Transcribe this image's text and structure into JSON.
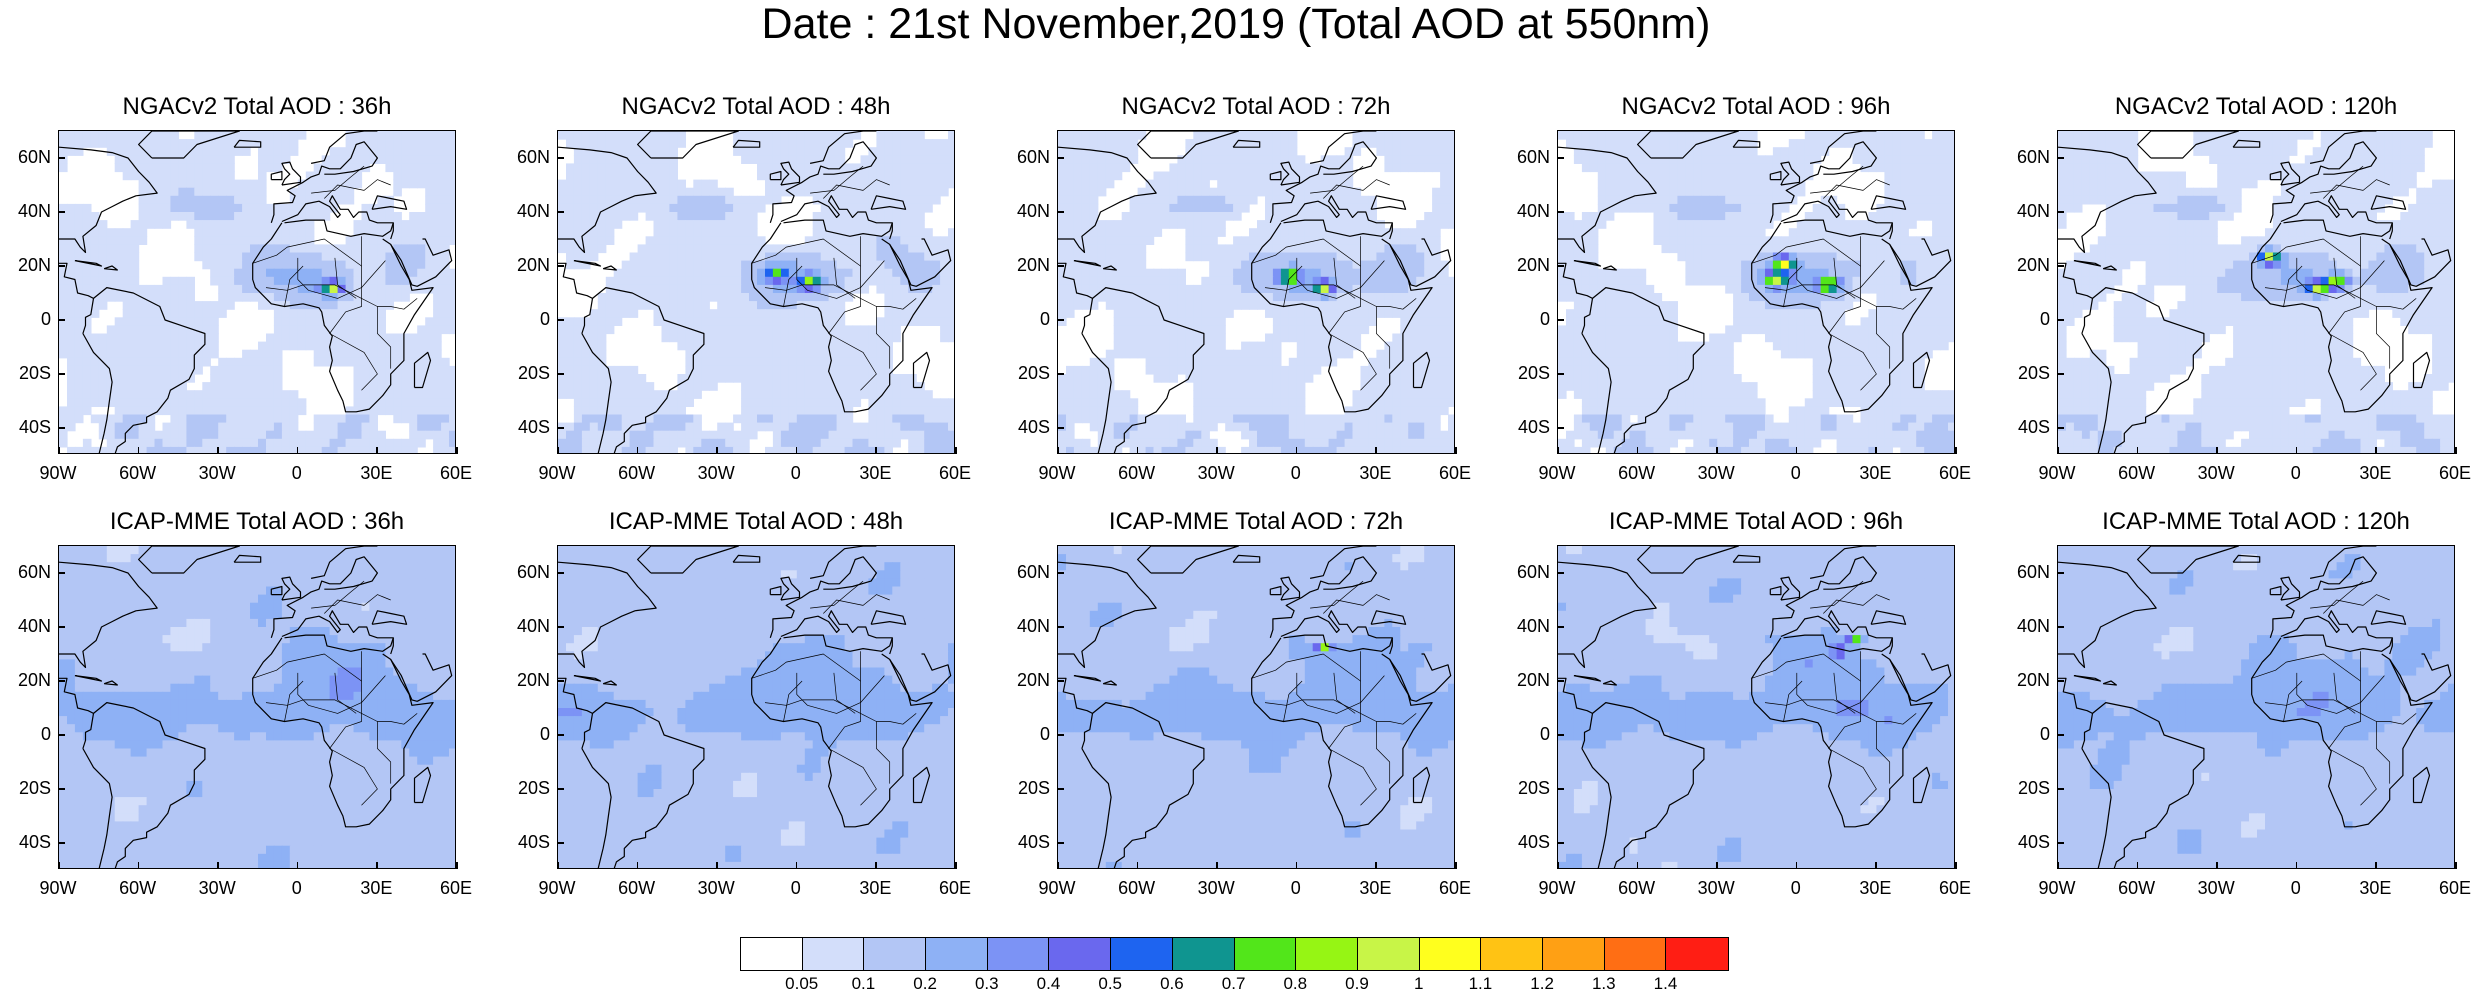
{
  "title": "Date : 21st November,2019 (Total AOD at 550nm)",
  "map_ticks": {
    "x": [
      "90W",
      "60W",
      "30W",
      "0",
      "30E",
      "60E"
    ],
    "y": [
      "60N",
      "40N",
      "20N",
      "0",
      "20S",
      "40S"
    ]
  },
  "colorbar": {
    "colors": [
      "#ffffff",
      "#d3defa",
      "#b3c6f5",
      "#8eb1f5",
      "#7c93f5",
      "#6a68ee",
      "#1e64f0",
      "#0f9590",
      "#52e61a",
      "#96f514",
      "#c8f547",
      "#ffff1e",
      "#ffc314",
      "#ffa014",
      "#ff6e14",
      "#ff1e14"
    ],
    "labels": [
      "0.05",
      "0.1",
      "0.2",
      "0.3",
      "0.4",
      "0.5",
      "0.6",
      "0.7",
      "0.8",
      "0.9",
      "1",
      "1.1",
      "1.2",
      "1.3",
      "1.4"
    ]
  },
  "chart_data": [
    {
      "type": "heatmap",
      "title": "NGACv2 Total AOD : 36h",
      "model": "NGACv2",
      "lead": "36h",
      "xlim": [
        "90W",
        "60E"
      ],
      "ylim": [
        "50S",
        "70N"
      ],
      "dust_peak": [
        [
          13,
          12,
          0.8
        ]
      ],
      "max_aod": 0.8
    },
    {
      "type": "heatmap",
      "title": "NGACv2 Total AOD : 48h",
      "model": "NGACv2",
      "lead": "48h",
      "xlim": [
        "90W",
        "60E"
      ],
      "ylim": [
        "50S",
        "70N"
      ],
      "dust_peak": [
        [
          5,
          14,
          0.7
        ],
        [
          -8,
          17,
          0.6
        ]
      ],
      "max_aod": 0.7
    },
    {
      "type": "heatmap",
      "title": "NGACv2 Total AOD : 72h",
      "model": "NGACv2",
      "lead": "72h",
      "xlim": [
        "90W",
        "60E"
      ],
      "ylim": [
        "50S",
        "70N"
      ],
      "dust_peak": [
        [
          -3,
          16,
          0.8
        ],
        [
          10,
          12,
          0.8
        ]
      ],
      "max_aod": 0.8
    },
    {
      "type": "heatmap",
      "title": "NGACv2 Total AOD : 96h",
      "model": "NGACv2",
      "lead": "96h",
      "xlim": [
        "90W",
        "60E"
      ],
      "ylim": [
        "50S",
        "70N"
      ],
      "dust_peak": [
        [
          -5,
          21,
          0.9
        ],
        [
          12,
          13,
          0.9
        ],
        [
          -8,
          15,
          0.8
        ]
      ],
      "max_aod": 0.9
    },
    {
      "type": "heatmap",
      "title": "NGACv2 Total AOD : 120h",
      "model": "NGACv2",
      "lead": "120h",
      "xlim": [
        "90W",
        "60E"
      ],
      "ylim": [
        "50S",
        "70N"
      ],
      "dust_peak": [
        [
          -10,
          23,
          0.9
        ],
        [
          8,
          12,
          0.8
        ],
        [
          15,
          14,
          0.8
        ]
      ],
      "max_aod": 0.9
    },
    {
      "type": "heatmap",
      "title": "ICAP-MME Total AOD : 36h",
      "model": "ICAP-MME",
      "lead": "36h",
      "xlim": [
        "90W",
        "60E"
      ],
      "ylim": [
        "50S",
        "70N"
      ],
      "dust_peak": [],
      "max_aod": 0.4
    },
    {
      "type": "heatmap",
      "title": "ICAP-MME Total AOD : 48h",
      "model": "ICAP-MME",
      "lead": "48h",
      "xlim": [
        "90W",
        "60E"
      ],
      "ylim": [
        "50S",
        "70N"
      ],
      "dust_peak": [],
      "max_aod": 0.4
    },
    {
      "type": "heatmap",
      "title": "ICAP-MME Total AOD : 72h",
      "model": "ICAP-MME",
      "lead": "72h",
      "xlim": [
        "90W",
        "60E"
      ],
      "ylim": [
        "50S",
        "70N"
      ],
      "dust_peak": [
        [
          10,
          32,
          0.8
        ]
      ],
      "max_aod": 0.8
    },
    {
      "type": "heatmap",
      "title": "ICAP-MME Total AOD : 96h",
      "model": "ICAP-MME",
      "lead": "96h",
      "xlim": [
        "90W",
        "60E"
      ],
      "ylim": [
        "50S",
        "70N"
      ],
      "dust_peak": [
        [
          22,
          35,
          0.7
        ],
        [
          16,
          31,
          0.6
        ]
      ],
      "max_aod": 0.7
    },
    {
      "type": "heatmap",
      "title": "ICAP-MME Total AOD : 120h",
      "model": "ICAP-MME",
      "lead": "120h",
      "xlim": [
        "90W",
        "60E"
      ],
      "ylim": [
        "50S",
        "70N"
      ],
      "dust_peak": [],
      "max_aod": 0.4
    }
  ]
}
